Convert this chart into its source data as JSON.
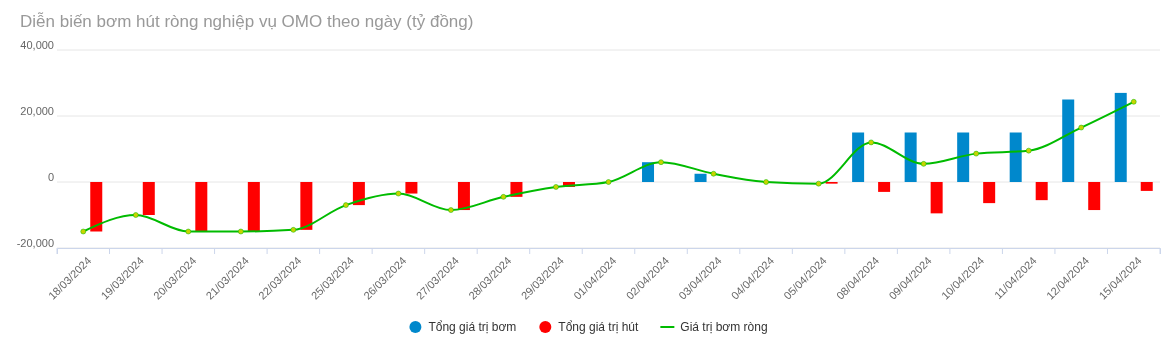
{
  "chart_data": {
    "type": "bar",
    "title": "Diễn biến bơm hút ròng nghiệp vụ OMO theo ngày (tỷ đồng)",
    "categories": [
      "18/03/2024",
      "19/03/2024",
      "20/03/2024",
      "21/03/2024",
      "22/03/2024",
      "25/03/2024",
      "26/03/2024",
      "27/03/2024",
      "28/03/2024",
      "29/03/2024",
      "01/04/2024",
      "02/04/2024",
      "03/04/2024",
      "04/04/2024",
      "05/04/2024",
      "08/04/2024",
      "09/04/2024",
      "10/04/2024",
      "11/04/2024",
      "12/04/2024",
      "15/04/2024"
    ],
    "series": [
      {
        "name": "Tổng giá trị bơm",
        "color": "#0088cc",
        "values": [
          null,
          null,
          null,
          null,
          null,
          null,
          null,
          null,
          null,
          null,
          null,
          6000,
          2500,
          null,
          null,
          15000,
          15000,
          15000,
          15000,
          25000,
          27000
        ]
      },
      {
        "name": "Tổng giá trị hút",
        "color": "#ff0000",
        "values": [
          -15000,
          -10000,
          -15000,
          -15000,
          -14500,
          -7000,
          -3500,
          -8500,
          -4500,
          -1500,
          null,
          null,
          null,
          null,
          -500,
          -3000,
          -9500,
          -6400,
          -5500,
          -8500,
          -2700
        ]
      },
      {
        "name": "Giá trị bơm ròng",
        "type": "line",
        "color": "#00bb00",
        "marker": "circle",
        "values": [
          -15000,
          -10000,
          -15000,
          -15000,
          -14500,
          -7000,
          -3500,
          -8500,
          -4500,
          -1500,
          0,
          6000,
          2500,
          0,
          -500,
          12000,
          5500,
          8600,
          9500,
          16500,
          24300
        ]
      }
    ],
    "ylim": [
      -20000,
      40000
    ],
    "yticks": [
      {
        "value": -20000,
        "label": "-20,000"
      },
      0,
      {
        "value": 20000,
        "label": "20,000"
      },
      {
        "value": 40000,
        "label": "40,000"
      }
    ],
    "grid": "y",
    "legend": "bottom"
  }
}
